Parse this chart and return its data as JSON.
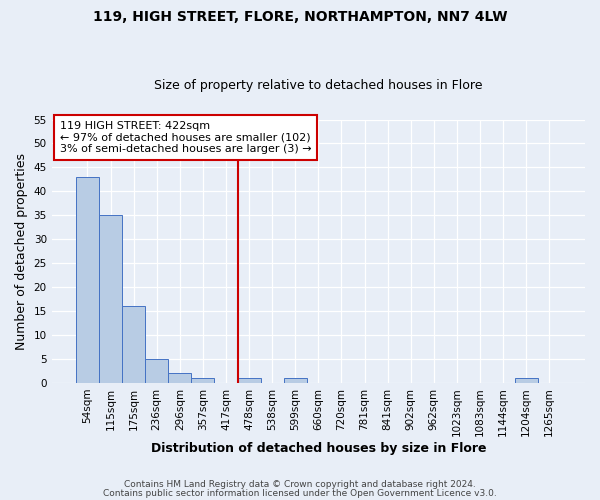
{
  "title": "119, HIGH STREET, FLORE, NORTHAMPTON, NN7 4LW",
  "subtitle": "Size of property relative to detached houses in Flore",
  "xlabel": "Distribution of detached houses by size in Flore",
  "ylabel": "Number of detached properties",
  "bin_labels": [
    "54sqm",
    "115sqm",
    "175sqm",
    "236sqm",
    "296sqm",
    "357sqm",
    "417sqm",
    "478sqm",
    "538sqm",
    "599sqm",
    "660sqm",
    "720sqm",
    "781sqm",
    "841sqm",
    "902sqm",
    "962sqm",
    "1023sqm",
    "1083sqm",
    "1144sqm",
    "1204sqm",
    "1265sqm"
  ],
  "bar_values": [
    43,
    35,
    16,
    5,
    2,
    1,
    0,
    1,
    0,
    1,
    0,
    0,
    0,
    0,
    0,
    0,
    0,
    0,
    0,
    1,
    0
  ],
  "bar_color": "#b8cce4",
  "bar_edge_color": "#4472c4",
  "red_line_index": 6,
  "red_line_label": "119 HIGH STREET: 422sqm",
  "annotation_line1": "← 97% of detached houses are smaller (102)",
  "annotation_line2": "3% of semi-detached houses are larger (3) →",
  "ylim": [
    0,
    55
  ],
  "yticks": [
    0,
    5,
    10,
    15,
    20,
    25,
    30,
    35,
    40,
    45,
    50,
    55
  ],
  "footnote1": "Contains HM Land Registry data © Crown copyright and database right 2024.",
  "footnote2": "Contains public sector information licensed under the Open Government Licence v3.0.",
  "title_fontsize": 10,
  "subtitle_fontsize": 9,
  "axis_label_fontsize": 9,
  "tick_fontsize": 7.5,
  "annotation_box_color": "white",
  "annotation_box_edge": "#cc0000",
  "red_line_color": "#cc0000",
  "background_color": "#e8eef7"
}
